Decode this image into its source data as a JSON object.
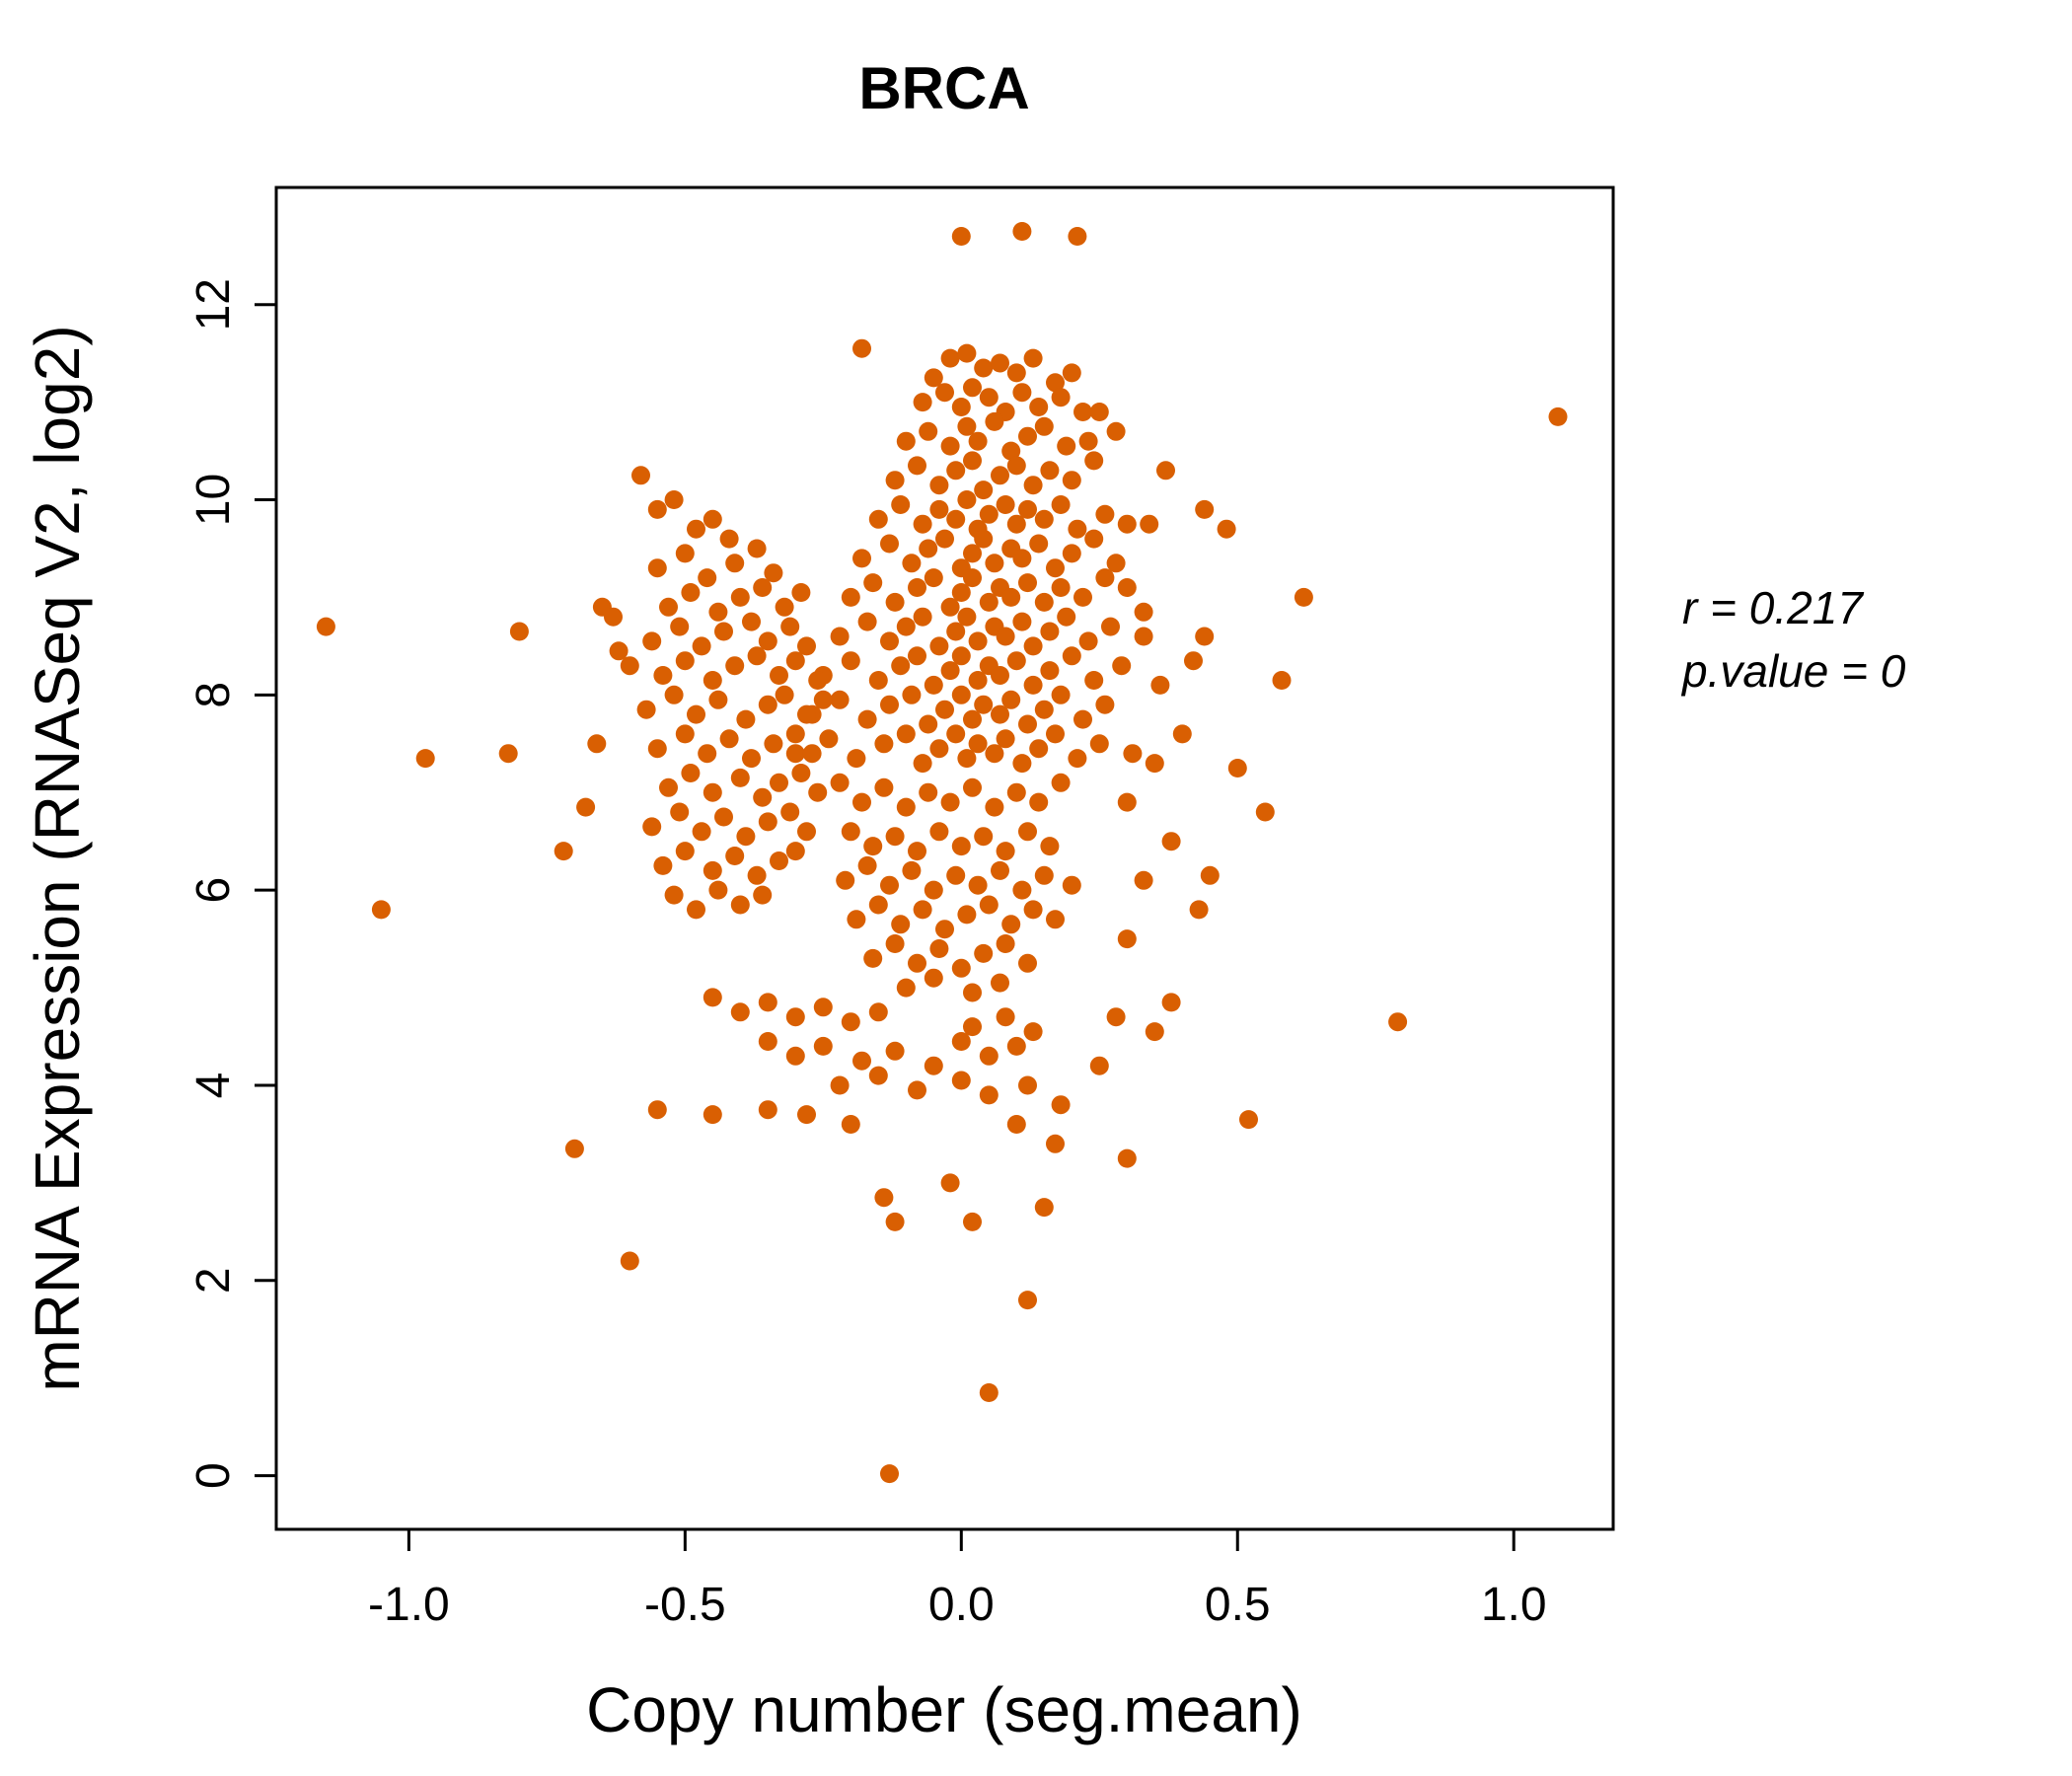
{
  "chart_data": {
    "type": "scatter",
    "title": "BRCA",
    "xlabel": "Copy number (seg.mean)",
    "ylabel": "mRNA Expression (RNASeq V2, log2)",
    "xlim": [
      -1.24,
      1.18
    ],
    "ylim": [
      -0.55,
      13.2
    ],
    "grid": false,
    "legend": "none",
    "point_color": "#D95F02",
    "title_color": "#D95F02",
    "axis_color": "#000000",
    "xticks": {
      "values": [
        -1.0,
        -0.5,
        0.0,
        0.5,
        1.0
      ],
      "labels": [
        "-1.0",
        "-0.5",
        "0.0",
        "0.5",
        "1.0"
      ]
    },
    "yticks": {
      "values": [
        0,
        2,
        4,
        6,
        8,
        10,
        12
      ],
      "labels": [
        "0",
        "2",
        "4",
        "6",
        "8",
        "10",
        "12"
      ]
    },
    "annotation": {
      "r_label": "r = 0.217",
      "p_label": "p.value = 0",
      "r_value": 0.217,
      "p_value": 0
    },
    "points": [
      [
        -0.02,
        11.45
      ],
      [
        0.01,
        11.5
      ],
      [
        0.04,
        11.35
      ],
      [
        0.07,
        11.4
      ],
      [
        0.1,
        11.3
      ],
      [
        0.13,
        11.45
      ],
      [
        -0.05,
        11.25
      ],
      [
        0.17,
        11.2
      ],
      [
        0.2,
        11.3
      ],
      [
        -0.07,
        11.0
      ],
      [
        -0.03,
        11.1
      ],
      [
        0.0,
        10.95
      ],
      [
        0.02,
        11.15
      ],
      [
        0.05,
        11.05
      ],
      [
        0.08,
        10.9
      ],
      [
        0.11,
        11.1
      ],
      [
        0.14,
        10.95
      ],
      [
        0.18,
        11.05
      ],
      [
        0.22,
        10.9
      ],
      [
        -0.1,
        10.6
      ],
      [
        -0.06,
        10.7
      ],
      [
        -0.02,
        10.55
      ],
      [
        0.01,
        10.75
      ],
      [
        0.03,
        10.6
      ],
      [
        0.06,
        10.8
      ],
      [
        0.09,
        10.5
      ],
      [
        0.12,
        10.65
      ],
      [
        0.15,
        10.75
      ],
      [
        0.19,
        10.55
      ],
      [
        0.23,
        10.6
      ],
      [
        0.28,
        10.7
      ],
      [
        -0.12,
        10.2
      ],
      [
        -0.08,
        10.35
      ],
      [
        -0.04,
        10.15
      ],
      [
        -0.01,
        10.3
      ],
      [
        0.02,
        10.4
      ],
      [
        0.04,
        10.1
      ],
      [
        0.07,
        10.25
      ],
      [
        0.1,
        10.35
      ],
      [
        0.13,
        10.15
      ],
      [
        0.16,
        10.3
      ],
      [
        0.2,
        10.2
      ],
      [
        0.24,
        10.4
      ],
      [
        0.37,
        10.3
      ],
      [
        -0.15,
        9.8
      ],
      [
        -0.11,
        9.95
      ],
      [
        -0.07,
        9.75
      ],
      [
        -0.04,
        9.9
      ],
      [
        -0.01,
        9.8
      ],
      [
        0.01,
        10.0
      ],
      [
        0.03,
        9.7
      ],
      [
        0.05,
        9.85
      ],
      [
        0.08,
        9.95
      ],
      [
        0.1,
        9.75
      ],
      [
        0.12,
        9.9
      ],
      [
        0.15,
        9.8
      ],
      [
        0.18,
        9.95
      ],
      [
        0.21,
        9.7
      ],
      [
        0.26,
        9.85
      ],
      [
        0.3,
        9.75
      ],
      [
        0.48,
        9.7
      ],
      [
        0.44,
        9.9
      ],
      [
        -0.18,
        9.4
      ],
      [
        -0.13,
        9.55
      ],
      [
        -0.09,
        9.35
      ],
      [
        -0.06,
        9.5
      ],
      [
        -0.03,
        9.6
      ],
      [
        0.0,
        9.3
      ],
      [
        0.02,
        9.45
      ],
      [
        0.04,
        9.6
      ],
      [
        0.06,
        9.35
      ],
      [
        0.09,
        9.5
      ],
      [
        0.11,
        9.4
      ],
      [
        0.14,
        9.55
      ],
      [
        0.17,
        9.3
      ],
      [
        0.2,
        9.45
      ],
      [
        0.24,
        9.6
      ],
      [
        0.28,
        9.35
      ],
      [
        -0.2,
        9.0
      ],
      [
        -0.16,
        9.15
      ],
      [
        -0.12,
        8.95
      ],
      [
        -0.08,
        9.1
      ],
      [
        -0.05,
        9.2
      ],
      [
        -0.02,
        8.9
      ],
      [
        0.0,
        9.05
      ],
      [
        0.02,
        9.2
      ],
      [
        0.05,
        8.95
      ],
      [
        0.07,
        9.1
      ],
      [
        0.09,
        9.0
      ],
      [
        0.12,
        9.15
      ],
      [
        0.15,
        8.95
      ],
      [
        0.18,
        9.1
      ],
      [
        0.22,
        9.0
      ],
      [
        0.26,
        9.2
      ],
      [
        0.62,
        9.0
      ],
      [
        0.3,
        9.1
      ],
      [
        -0.22,
        8.6
      ],
      [
        -0.17,
        8.75
      ],
      [
        -0.13,
        8.55
      ],
      [
        -0.1,
        8.7
      ],
      [
        -0.07,
        8.8
      ],
      [
        -0.04,
        8.5
      ],
      [
        -0.01,
        8.65
      ],
      [
        0.01,
        8.8
      ],
      [
        0.03,
        8.55
      ],
      [
        0.06,
        8.7
      ],
      [
        0.08,
        8.6
      ],
      [
        0.11,
        8.75
      ],
      [
        0.13,
        8.5
      ],
      [
        0.16,
        8.65
      ],
      [
        0.19,
        8.8
      ],
      [
        0.23,
        8.55
      ],
      [
        0.27,
        8.7
      ],
      [
        0.33,
        8.6
      ],
      [
        -0.25,
        8.2
      ],
      [
        -0.2,
        8.35
      ],
      [
        -0.15,
        8.15
      ],
      [
        -0.11,
        8.3
      ],
      [
        -0.08,
        8.4
      ],
      [
        -0.05,
        8.1
      ],
      [
        -0.02,
        8.25
      ],
      [
        0.0,
        8.4
      ],
      [
        0.03,
        8.15
      ],
      [
        0.05,
        8.3
      ],
      [
        0.07,
        8.2
      ],
      [
        0.1,
        8.35
      ],
      [
        0.13,
        8.1
      ],
      [
        0.16,
        8.25
      ],
      [
        0.2,
        8.4
      ],
      [
        0.24,
        8.15
      ],
      [
        0.29,
        8.3
      ],
      [
        0.42,
        8.35
      ],
      [
        -0.27,
        7.8
      ],
      [
        -0.22,
        7.95
      ],
      [
        -0.17,
        7.75
      ],
      [
        -0.13,
        7.9
      ],
      [
        -0.09,
        8.0
      ],
      [
        -0.06,
        7.7
      ],
      [
        -0.03,
        7.85
      ],
      [
        0.0,
        8.0
      ],
      [
        0.02,
        7.75
      ],
      [
        0.04,
        7.9
      ],
      [
        0.07,
        7.8
      ],
      [
        0.09,
        7.95
      ],
      [
        0.12,
        7.7
      ],
      [
        0.15,
        7.85
      ],
      [
        0.18,
        8.0
      ],
      [
        0.22,
        7.75
      ],
      [
        0.26,
        7.9
      ],
      [
        -0.3,
        7.4
      ],
      [
        -0.24,
        7.55
      ],
      [
        -0.19,
        7.35
      ],
      [
        -0.14,
        7.5
      ],
      [
        -0.1,
        7.6
      ],
      [
        -0.07,
        7.3
      ],
      [
        -0.04,
        7.45
      ],
      [
        -0.01,
        7.6
      ],
      [
        0.01,
        7.35
      ],
      [
        0.03,
        7.5
      ],
      [
        0.06,
        7.4
      ],
      [
        0.08,
        7.55
      ],
      [
        0.11,
        7.3
      ],
      [
        0.14,
        7.45
      ],
      [
        0.17,
        7.6
      ],
      [
        0.21,
        7.35
      ],
      [
        0.25,
        7.5
      ],
      [
        0.31,
        7.4
      ],
      [
        -0.58,
        10.25
      ],
      [
        -0.55,
        9.9
      ],
      [
        -0.52,
        10.0
      ],
      [
        -0.48,
        9.7
      ],
      [
        -0.45,
        9.8
      ],
      [
        -0.42,
        9.6
      ],
      [
        -0.55,
        9.3
      ],
      [
        -0.5,
        9.45
      ],
      [
        -0.46,
        9.2
      ],
      [
        -0.41,
        9.35
      ],
      [
        -0.37,
        9.5
      ],
      [
        -0.34,
        9.25
      ],
      [
        -0.53,
        8.9
      ],
      [
        -0.49,
        9.05
      ],
      [
        -0.44,
        8.85
      ],
      [
        -0.4,
        9.0
      ],
      [
        -0.36,
        9.1
      ],
      [
        -0.32,
        8.9
      ],
      [
        -0.29,
        9.05
      ],
      [
        -0.56,
        8.55
      ],
      [
        -0.51,
        8.7
      ],
      [
        -0.47,
        8.5
      ],
      [
        -0.43,
        8.65
      ],
      [
        -0.38,
        8.75
      ],
      [
        -0.35,
        8.55
      ],
      [
        -0.31,
        8.7
      ],
      [
        -0.28,
        8.5
      ],
      [
        -0.54,
        8.2
      ],
      [
        -0.5,
        8.35
      ],
      [
        -0.45,
        8.15
      ],
      [
        -0.41,
        8.3
      ],
      [
        -0.37,
        8.4
      ],
      [
        -0.33,
        8.2
      ],
      [
        -0.3,
        8.35
      ],
      [
        -0.26,
        8.15
      ],
      [
        -0.57,
        7.85
      ],
      [
        -0.52,
        8.0
      ],
      [
        -0.48,
        7.8
      ],
      [
        -0.44,
        7.95
      ],
      [
        -0.39,
        7.75
      ],
      [
        -0.35,
        7.9
      ],
      [
        -0.32,
        8.0
      ],
      [
        -0.28,
        7.8
      ],
      [
        -0.25,
        7.95
      ],
      [
        -0.55,
        7.45
      ],
      [
        -0.5,
        7.6
      ],
      [
        -0.46,
        7.4
      ],
      [
        -0.42,
        7.55
      ],
      [
        -0.38,
        7.35
      ],
      [
        -0.34,
        7.5
      ],
      [
        -0.3,
        7.6
      ],
      [
        -0.27,
        7.4
      ],
      [
        -0.53,
        7.05
      ],
      [
        -0.49,
        7.2
      ],
      [
        -0.45,
        7.0
      ],
      [
        -0.4,
        7.15
      ],
      [
        -0.36,
        6.95
      ],
      [
        -0.33,
        7.1
      ],
      [
        -0.29,
        7.2
      ],
      [
        -0.26,
        7.0
      ],
      [
        -0.56,
        6.65
      ],
      [
        -0.51,
        6.8
      ],
      [
        -0.47,
        6.6
      ],
      [
        -0.43,
        6.75
      ],
      [
        -0.39,
        6.55
      ],
      [
        -0.35,
        6.7
      ],
      [
        -0.31,
        6.8
      ],
      [
        -0.28,
        6.6
      ],
      [
        -0.54,
        6.25
      ],
      [
        -0.5,
        6.4
      ],
      [
        -0.45,
        6.2
      ],
      [
        -0.41,
        6.35
      ],
      [
        -0.37,
        6.15
      ],
      [
        -0.33,
        6.3
      ],
      [
        -0.3,
        6.4
      ],
      [
        -0.52,
        5.95
      ],
      [
        -0.48,
        5.8
      ],
      [
        -0.44,
        6.0
      ],
      [
        -0.4,
        5.85
      ],
      [
        -0.36,
        5.95
      ],
      [
        -0.22,
        7.1
      ],
      [
        -0.18,
        6.9
      ],
      [
        -0.14,
        7.05
      ],
      [
        -0.1,
        6.85
      ],
      [
        -0.06,
        7.0
      ],
      [
        -0.02,
        6.9
      ],
      [
        0.02,
        7.05
      ],
      [
        0.06,
        6.85
      ],
      [
        0.1,
        7.0
      ],
      [
        0.14,
        6.9
      ],
      [
        0.18,
        7.1
      ],
      [
        -0.2,
        6.6
      ],
      [
        -0.16,
        6.45
      ],
      [
        -0.12,
        6.55
      ],
      [
        -0.08,
        6.4
      ],
      [
        -0.04,
        6.6
      ],
      [
        0.0,
        6.45
      ],
      [
        0.04,
        6.55
      ],
      [
        0.08,
        6.4
      ],
      [
        0.12,
        6.6
      ],
      [
        0.16,
        6.45
      ],
      [
        -0.21,
        6.1
      ],
      [
        -0.17,
        6.25
      ],
      [
        -0.13,
        6.05
      ],
      [
        -0.09,
        6.2
      ],
      [
        -0.05,
        6.0
      ],
      [
        -0.01,
        6.15
      ],
      [
        0.03,
        6.05
      ],
      [
        0.07,
        6.2
      ],
      [
        0.11,
        6.0
      ],
      [
        0.15,
        6.15
      ],
      [
        0.2,
        6.05
      ],
      [
        -0.19,
        5.7
      ],
      [
        -0.15,
        5.85
      ],
      [
        -0.11,
        5.65
      ],
      [
        -0.07,
        5.8
      ],
      [
        -0.03,
        5.6
      ],
      [
        0.01,
        5.75
      ],
      [
        0.05,
        5.85
      ],
      [
        0.09,
        5.65
      ],
      [
        0.13,
        5.8
      ],
      [
        0.17,
        5.7
      ],
      [
        -0.16,
        5.3
      ],
      [
        -0.12,
        5.45
      ],
      [
        -0.08,
        5.25
      ],
      [
        -0.04,
        5.4
      ],
      [
        0.0,
        5.2
      ],
      [
        0.04,
        5.35
      ],
      [
        0.08,
        5.45
      ],
      [
        0.12,
        5.25
      ],
      [
        -0.1,
        5.0
      ],
      [
        -0.05,
        5.1
      ],
      [
        0.02,
        4.95
      ],
      [
        0.07,
        5.05
      ],
      [
        -0.45,
        4.9
      ],
      [
        -0.4,
        4.75
      ],
      [
        -0.35,
        4.85
      ],
      [
        -0.3,
        4.7
      ],
      [
        -0.25,
        4.8
      ],
      [
        -0.2,
        4.65
      ],
      [
        -0.15,
        4.75
      ],
      [
        -0.35,
        4.45
      ],
      [
        -0.3,
        4.3
      ],
      [
        -0.25,
        4.4
      ],
      [
        -0.18,
        4.25
      ],
      [
        -0.12,
        4.35
      ],
      [
        -0.05,
        4.2
      ],
      [
        0.0,
        4.45
      ],
      [
        0.05,
        4.3
      ],
      [
        0.1,
        4.4
      ],
      [
        0.02,
        4.6
      ],
      [
        0.08,
        4.7
      ],
      [
        0.13,
        4.55
      ],
      [
        -0.22,
        4.0
      ],
      [
        -0.15,
        4.1
      ],
      [
        -0.08,
        3.95
      ],
      [
        0.0,
        4.05
      ],
      [
        0.05,
        3.9
      ],
      [
        0.12,
        4.0
      ],
      [
        -0.35,
        3.75
      ],
      [
        -0.28,
        3.7
      ],
      [
        -0.2,
        3.6
      ],
      [
        -0.55,
        3.75
      ],
      [
        -0.45,
        3.7
      ],
      [
        0.28,
        4.7
      ],
      [
        0.35,
        4.55
      ],
      [
        0.25,
        4.2
      ],
      [
        0.18,
        3.8
      ],
      [
        0.1,
        3.6
      ],
      [
        0.38,
        4.85
      ],
      [
        0.79,
        4.65
      ],
      [
        0.52,
        3.65
      ],
      [
        0.34,
        9.75
      ],
      [
        0.33,
        8.85
      ],
      [
        0.36,
        8.1
      ],
      [
        0.4,
        7.6
      ],
      [
        0.35,
        7.3
      ],
      [
        0.3,
        6.9
      ],
      [
        0.38,
        6.5
      ],
      [
        0.45,
        6.15
      ],
      [
        0.33,
        6.1
      ],
      [
        0.43,
        5.8
      ],
      [
        0.3,
        5.5
      ],
      [
        0.55,
        6.8
      ],
      [
        0.5,
        7.25
      ],
      [
        0.44,
        8.6
      ],
      [
        0.58,
        8.15
      ],
      [
        -1.15,
        8.7
      ],
      [
        -1.05,
        5.8
      ],
      [
        -0.97,
        7.35
      ],
      [
        -0.82,
        7.4
      ],
      [
        -0.8,
        8.65
      ],
      [
        -0.72,
        6.4
      ],
      [
        -0.68,
        6.85
      ],
      [
        -0.65,
        8.9
      ],
      [
        -0.63,
        8.8
      ],
      [
        -0.62,
        8.45
      ],
      [
        -0.6,
        8.3
      ],
      [
        -0.66,
        7.5
      ],
      [
        -0.7,
        3.35
      ],
      [
        -0.6,
        2.2
      ],
      [
        0.0,
        12.7
      ],
      [
        0.11,
        12.75
      ],
      [
        0.21,
        12.7
      ],
      [
        -0.18,
        11.55
      ],
      [
        1.08,
        10.85
      ],
      [
        0.25,
        10.9
      ],
      [
        -0.13,
        0.02
      ],
      [
        0.05,
        0.85
      ],
      [
        0.12,
        1.8
      ],
      [
        -0.14,
        2.85
      ],
      [
        -0.12,
        2.6
      ],
      [
        0.15,
        2.75
      ],
      [
        -0.02,
        3.0
      ],
      [
        0.02,
        2.6
      ],
      [
        0.17,
        3.4
      ],
      [
        0.3,
        3.25
      ]
    ]
  }
}
